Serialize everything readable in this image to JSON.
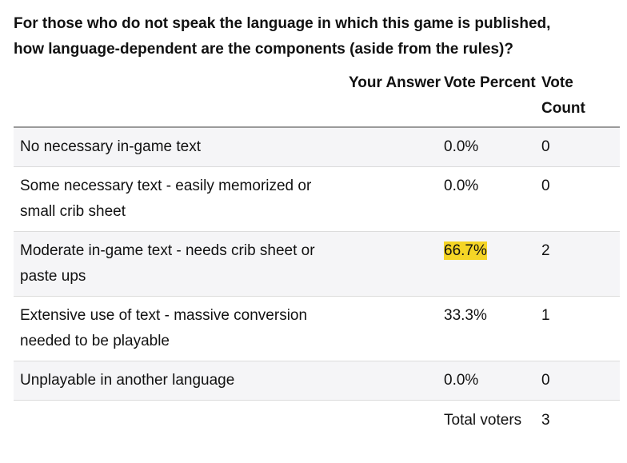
{
  "poll": {
    "question_line1": "For those who do not speak the language in which this game is published,",
    "question_line2": "how language-dependent are the components (aside from the rules)?",
    "headers": {
      "option": "",
      "your_answer": "Your Answer",
      "vote_percent": "Vote Percent",
      "vote_count": "Vote Count"
    },
    "rows": [
      {
        "option": "No necessary in-game text",
        "your_answer": "",
        "percent": "0.0%",
        "count": "0",
        "highlighted": false
      },
      {
        "option": "Some necessary text - easily memorized or small crib sheet",
        "your_answer": "",
        "percent": "0.0%",
        "count": "0",
        "highlighted": false
      },
      {
        "option": "Moderate in-game text - needs crib sheet or paste ups",
        "your_answer": "",
        "percent": "66.7%",
        "count": "2",
        "highlighted": true
      },
      {
        "option": "Extensive use of text - massive conversion needed to be playable",
        "your_answer": "",
        "percent": "33.3%",
        "count": "1",
        "highlighted": false
      },
      {
        "option": "Unplayable in another language",
        "your_answer": "",
        "percent": "0.0%",
        "count": "0",
        "highlighted": false
      }
    ],
    "footer": {
      "label": "Total voters",
      "count": "3"
    },
    "highlight_color": "#f5d526"
  }
}
